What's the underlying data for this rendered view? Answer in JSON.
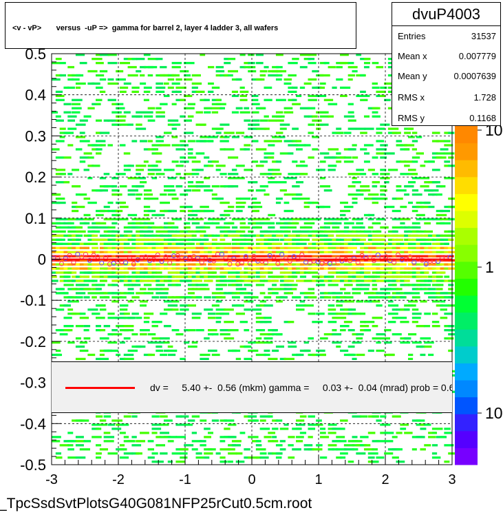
{
  "title": "<v - vP>       versus  -uP =>  gamma for barrel 2, layer 4 ladder 3, all wafers",
  "stats": {
    "name": "dvuP4003",
    "rows": [
      {
        "label": "Entries",
        "value": "31537"
      },
      {
        "label": "Mean x",
        "value": "0.007779"
      },
      {
        "label": "Mean y",
        "value": "0.0007639"
      },
      {
        "label": "RMS x",
        "value": "1.728"
      },
      {
        "label": "RMS y",
        "value": "0.1168"
      }
    ]
  },
  "fit_legend": {
    "text": "dv =     5.40 +-  0.56 (mkm) gamma =     0.03 +-  0.04 (mrad) prob = 0.6",
    "line_color": "#ff0000"
  },
  "footer": "_TpcSsdSvtPlotsG40G081NFP25rCut0.5cm.root",
  "chart_data": {
    "type": "heatmap",
    "title": "<v - vP>       versus  -uP =>  gamma for barrel 2, layer 4 ladder 3, all wafers",
    "xlim": [
      -3,
      3
    ],
    "ylim": [
      -0.5,
      0.5
    ],
    "x_ticks": [
      "-3",
      "-2",
      "-1",
      "0",
      "1",
      "2",
      "3"
    ],
    "y_ticks": [
      "-0.5",
      "-0.4",
      "-0.3",
      "-0.2",
      "-0.1",
      "0",
      "0.1",
      "0.2",
      "0.3",
      "0.4",
      "0.5"
    ],
    "grid": true,
    "color_scale": "log",
    "colorbar_labels": [
      "10",
      "1",
      "10"
    ],
    "band_center_y": 0.0,
    "band_rms_y": 0.1168,
    "profile_points_y": 0.0,
    "fit_line": {
      "color": "#ff0000",
      "y": 0.0
    }
  }
}
